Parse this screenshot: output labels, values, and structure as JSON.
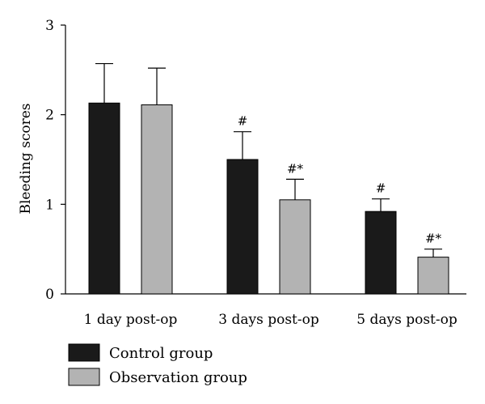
{
  "chart_data": {
    "type": "bar",
    "title": "",
    "xlabel": "",
    "ylabel": "Bleeding scores",
    "ylim": [
      0,
      3
    ],
    "yticks": [
      0,
      1,
      2,
      3
    ],
    "categories": [
      "1 day post-op",
      "3 days post-op",
      "5 days post-op"
    ],
    "series": [
      {
        "name": "Control group",
        "color": "#1a1a1a",
        "values": [
          2.13,
          1.5,
          0.92
        ],
        "errors": [
          0.44,
          0.31,
          0.14
        ],
        "annotations": [
          "",
          "#",
          "#"
        ]
      },
      {
        "name": "Observation group",
        "color": "#b3b3b3",
        "values": [
          2.11,
          1.05,
          0.41
        ],
        "errors": [
          0.41,
          0.23,
          0.09
        ],
        "annotations": [
          "",
          "#*",
          "#*"
        ]
      }
    ],
    "legend_position": "bottom-left",
    "grid": false
  }
}
